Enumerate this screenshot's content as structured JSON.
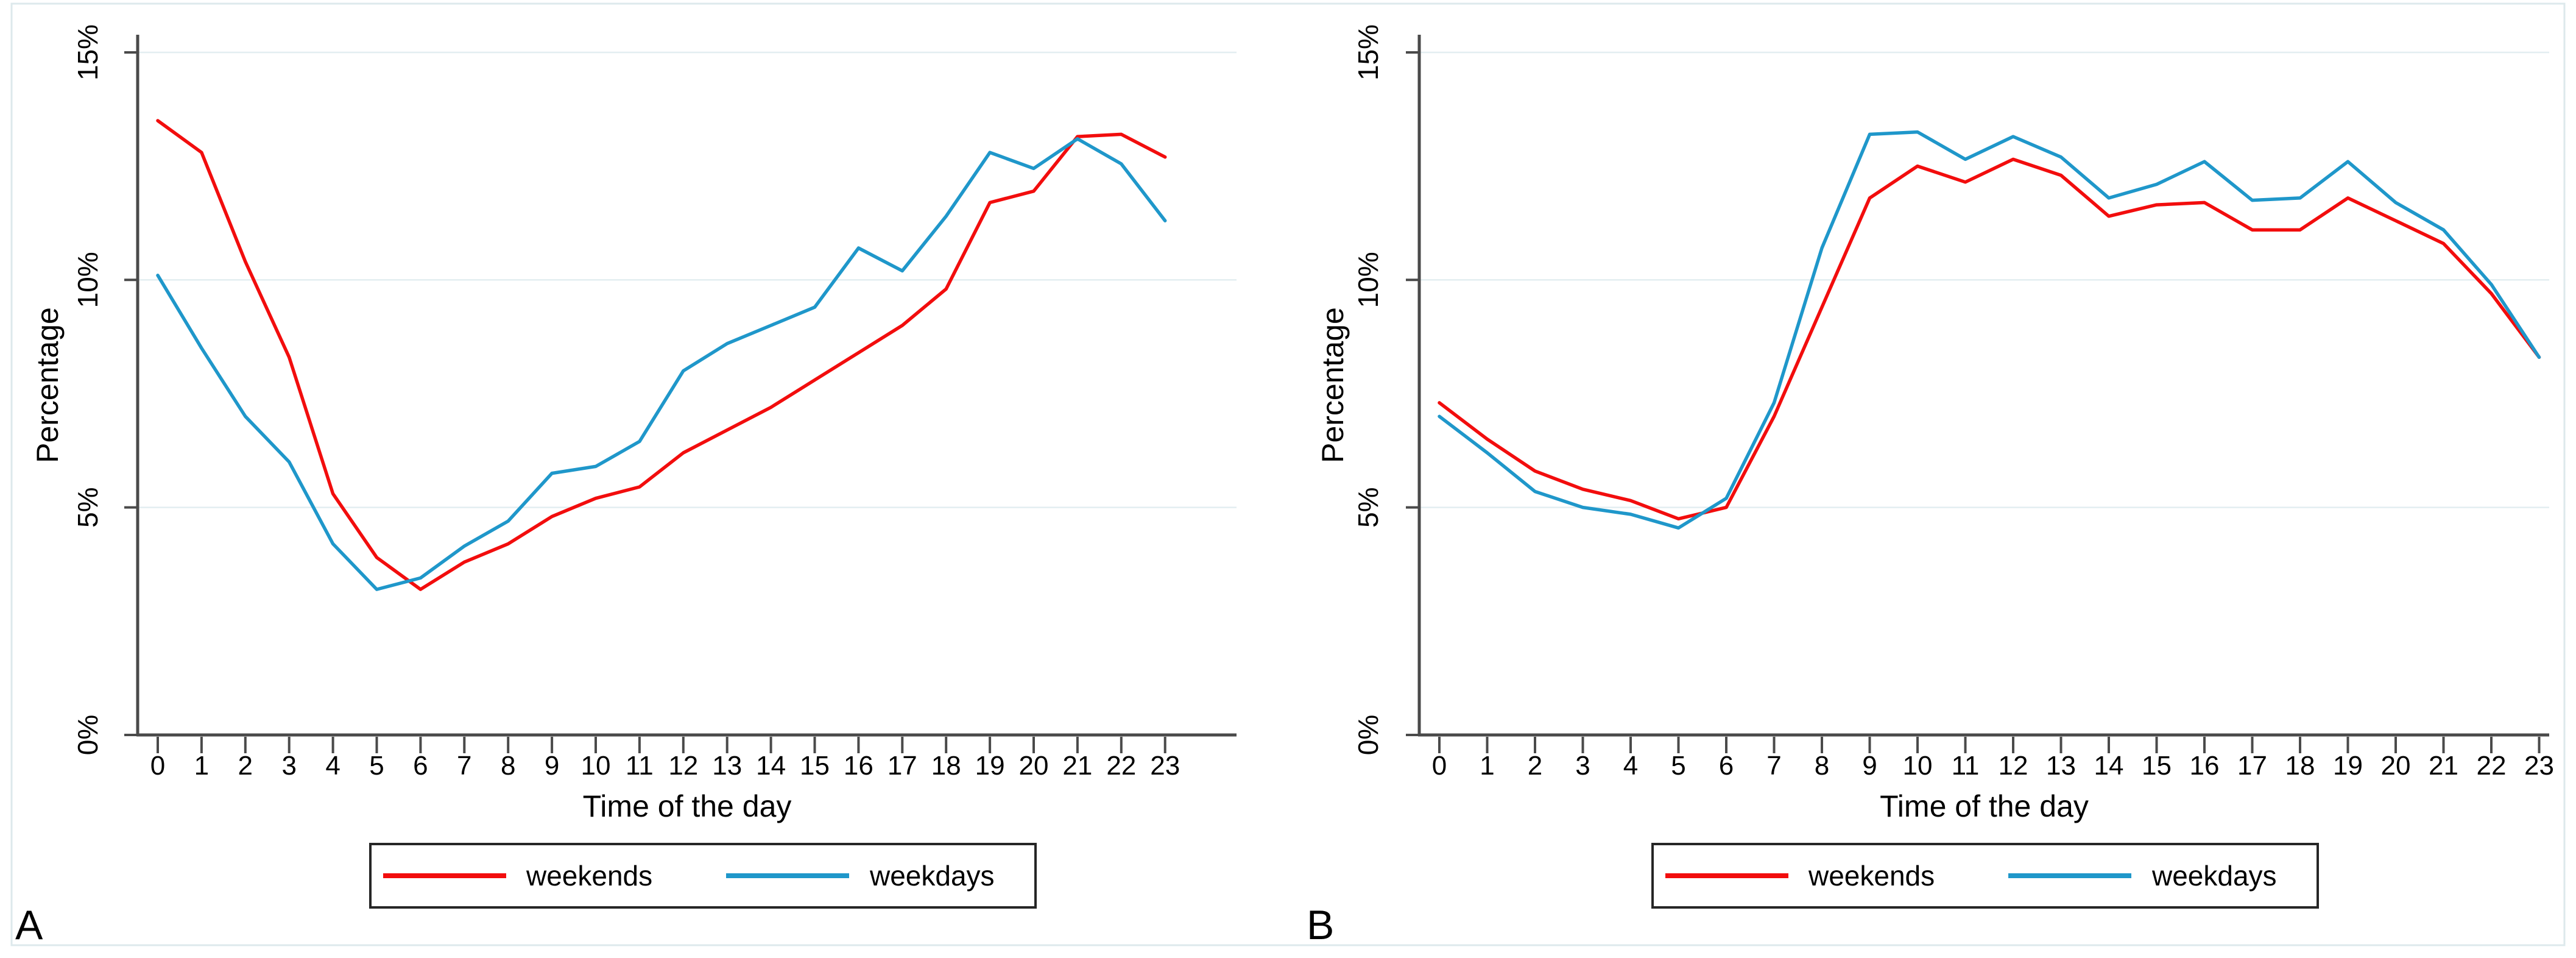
{
  "figure": {
    "panels": [
      {
        "label": "A",
        "xlabel": "Time of the day",
        "ylabel": "Percentage",
        "y_tick_labels": [
          "0%",
          "5%",
          "10%",
          "15%"
        ],
        "legend": {
          "items": [
            {
              "label": "weekends"
            },
            {
              "label": "weekdays"
            }
          ]
        }
      },
      {
        "label": "B",
        "xlabel": "Time of the day",
        "ylabel": "Percentage",
        "y_tick_labels": [
          "0%",
          "5%",
          "10%",
          "15%"
        ],
        "legend": {
          "items": [
            {
              "label": "weekends"
            },
            {
              "label": "weekdays"
            }
          ]
        }
      }
    ]
  },
  "colors": {
    "weekends": "#f20d0d",
    "weekdays": "#1f97ca",
    "gridline": "#e3eef1",
    "axis": "#4a4a4a",
    "frame": "#dde9ec",
    "legend_border": "#262626",
    "background": "#ffffff"
  },
  "chart_data": [
    {
      "type": "line",
      "panel": "A",
      "title": "",
      "xlabel": "Time of the day",
      "ylabel": "Percentage",
      "x": [
        0,
        1,
        2,
        3,
        4,
        5,
        6,
        7,
        8,
        9,
        10,
        11,
        12,
        13,
        14,
        15,
        16,
        17,
        18,
        19,
        20,
        21,
        22,
        23
      ],
      "ylim": [
        0,
        15.8
      ],
      "yticks": [
        0,
        5,
        10,
        15
      ],
      "ytick_labels": [
        "0%",
        "5%",
        "10%",
        "15%"
      ],
      "grid": "horizontal",
      "legend_position": "bottom",
      "series": [
        {
          "name": "weekends",
          "color": "#f20d0d",
          "values": [
            13.5,
            12.8,
            10.4,
            8.3,
            5.3,
            3.9,
            3.2,
            3.8,
            4.2,
            4.8,
            5.2,
            5.45,
            6.2,
            6.7,
            7.2,
            7.8,
            8.4,
            9.0,
            9.8,
            11.7,
            11.95,
            13.15,
            13.2,
            12.7
          ]
        },
        {
          "name": "weekdays",
          "color": "#1f97ca",
          "values": [
            10.1,
            8.5,
            7.0,
            6.0,
            4.2,
            3.2,
            3.45,
            4.15,
            4.7,
            5.75,
            5.9,
            6.45,
            8.0,
            8.6,
            9.0,
            9.4,
            10.7,
            10.2,
            11.4,
            12.8,
            12.45,
            13.1,
            12.55,
            11.3
          ]
        }
      ]
    },
    {
      "type": "line",
      "panel": "B",
      "title": "",
      "xlabel": "Time of the day",
      "ylabel": "Percentage",
      "x": [
        0,
        1,
        2,
        3,
        4,
        5,
        6,
        7,
        8,
        9,
        10,
        11,
        12,
        13,
        14,
        15,
        16,
        17,
        18,
        19,
        20,
        21,
        22,
        23
      ],
      "ylim": [
        0,
        15.8
      ],
      "yticks": [
        0,
        5,
        10,
        15
      ],
      "ytick_labels": [
        "0%",
        "5%",
        "10%",
        "15%"
      ],
      "grid": "horizontal",
      "legend_position": "bottom",
      "series": [
        {
          "name": "weekends",
          "color": "#f20d0d",
          "values": [
            7.3,
            6.5,
            5.8,
            5.4,
            5.15,
            4.75,
            5.0,
            7.0,
            9.4,
            11.8,
            12.5,
            12.15,
            12.65,
            12.3,
            11.4,
            11.65,
            11.7,
            11.1,
            11.1,
            11.8,
            11.3,
            10.8,
            9.7,
            8.3
          ]
        },
        {
          "name": "weekdays",
          "color": "#1f97ca",
          "values": [
            7.0,
            6.2,
            5.35,
            5.0,
            4.85,
            4.55,
            5.2,
            7.3,
            10.7,
            13.2,
            13.25,
            12.65,
            13.15,
            12.7,
            11.8,
            12.1,
            12.6,
            11.75,
            11.8,
            12.6,
            11.7,
            11.1,
            9.9,
            8.3
          ]
        }
      ]
    }
  ]
}
